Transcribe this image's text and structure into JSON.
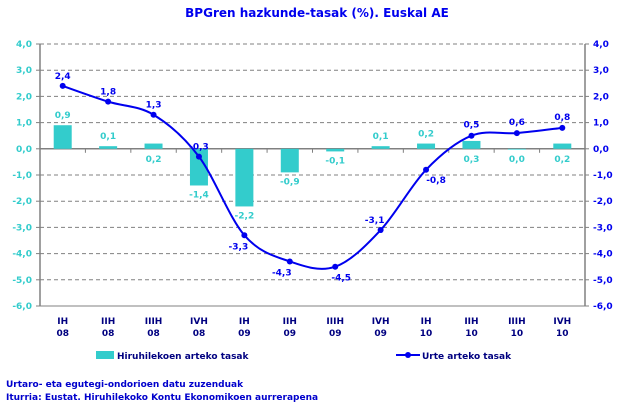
{
  "chart_data": {
    "type": "bar+line",
    "title": "BPGren hazkunde-tasak (%). Euskal AE",
    "categories": [
      [
        "IH",
        "08"
      ],
      [
        "IIH",
        "08"
      ],
      [
        "IIIH",
        "08"
      ],
      [
        "IVH",
        "08"
      ],
      [
        "IH",
        "09"
      ],
      [
        "IIH",
        "09"
      ],
      [
        "IIIH",
        "09"
      ],
      [
        "IVH",
        "09"
      ],
      [
        "IH",
        "10"
      ],
      [
        "IIH",
        "10"
      ],
      [
        "IIIH",
        "10"
      ],
      [
        "IVH",
        "10"
      ]
    ],
    "ylim": [
      -6,
      4
    ],
    "yticks": [
      "4,0",
      "3,0",
      "2,0",
      "1,0",
      "0,0",
      "-1,0",
      "-2,0",
      "-3,0",
      "-4,0",
      "-5,0",
      "-6,0"
    ],
    "grid": true,
    "legend_placement": "bottom",
    "series": [
      {
        "name": "Hiruhilekoen arteko tasak",
        "kind": "bar",
        "color": "#33cccc",
        "values": [
          0.9,
          0.1,
          0.2,
          -1.4,
          -2.2,
          -0.9,
          -0.1,
          0.1,
          0.2,
          0.3,
          0.0,
          0.2
        ],
        "labels": [
          "0,9",
          "0,1",
          "0,2",
          "-1,4",
          "-2,2",
          "-0,9",
          "-0,1",
          "0,1",
          "0,2",
          "0,3",
          "0,0",
          "0,2"
        ]
      },
      {
        "name": "Urte arteko tasak",
        "kind": "line",
        "color": "#0000ee",
        "values": [
          2.4,
          1.8,
          1.3,
          -0.3,
          -3.3,
          -4.3,
          -4.5,
          -3.1,
          -0.8,
          0.5,
          0.6,
          0.8
        ],
        "labels": [
          "2,4",
          "1,8",
          "1,3",
          "-0,3",
          "-3,3",
          "-4,3",
          "-4,5",
          "-3,1",
          "-0,8",
          "0,5",
          "0,6",
          "0,8"
        ]
      }
    ]
  },
  "notes": [
    "Urtaro- eta egutegi-ondorioen datu zuzenduak",
    "Iturria: Eustat. Hiruhilekoko Kontu Ekonomikoen aurrerapena"
  ]
}
